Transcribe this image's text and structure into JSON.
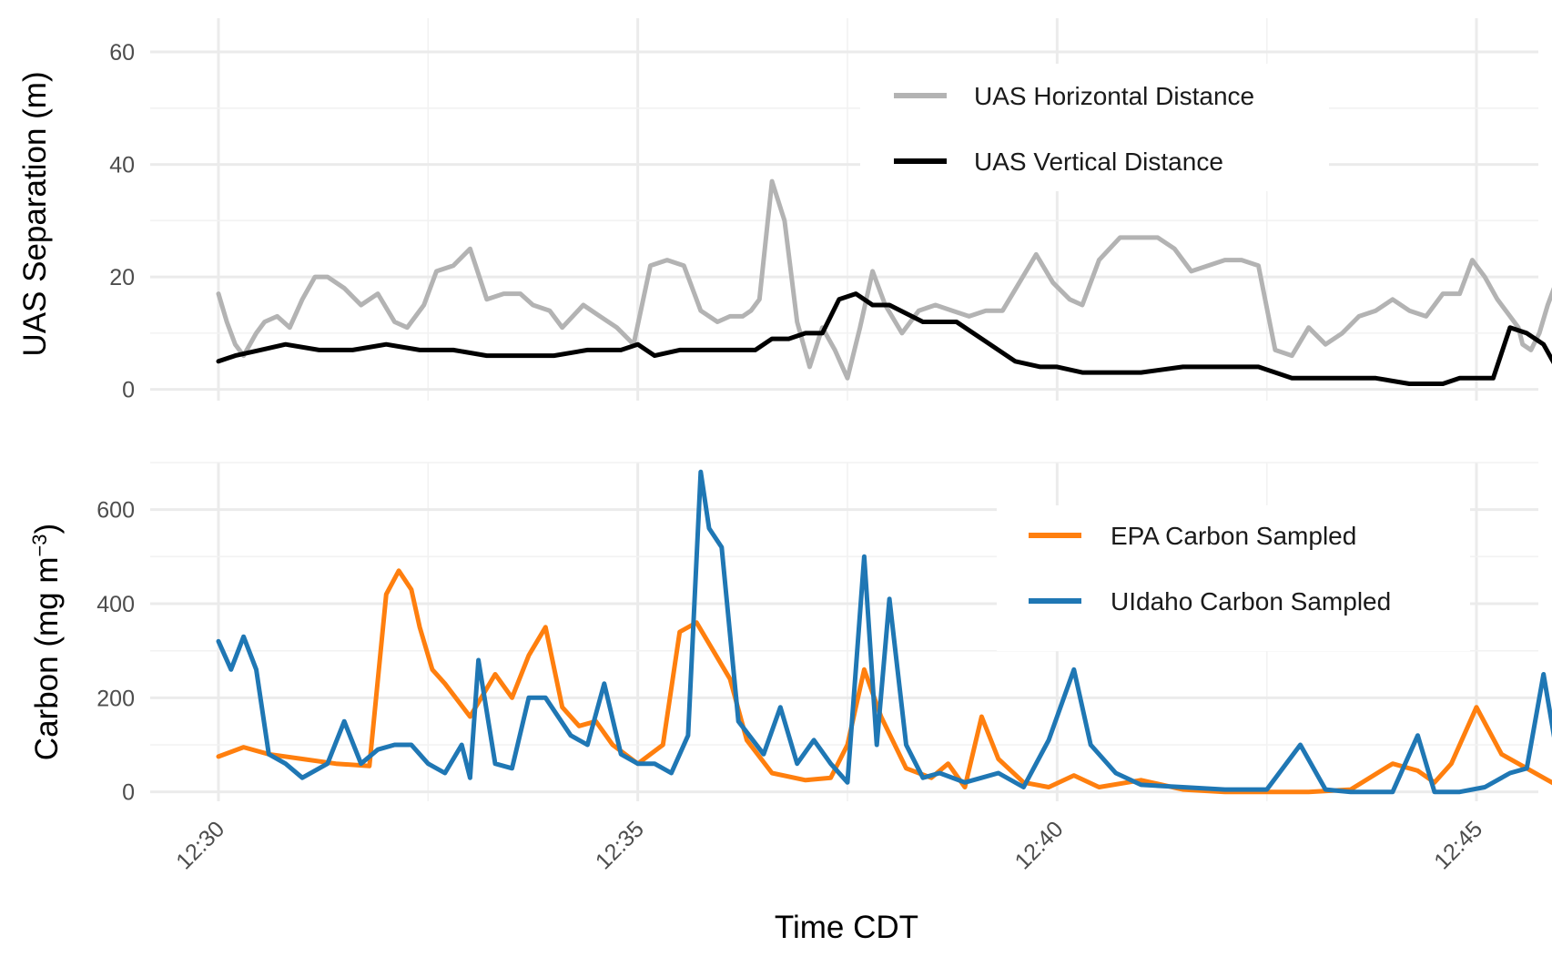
{
  "chart_data": [
    {
      "type": "line",
      "ylabel": "UAS Separation (m)",
      "xlabel": "",
      "x_unit": "minutes after 12:30 CDT",
      "ylim": [
        -2,
        66
      ],
      "yticks": [
        0,
        20,
        40,
        60
      ],
      "grid": true,
      "legend_position": "top-right",
      "series": [
        {
          "name": "UAS Horizontal Distance",
          "color": "#b3b3b3",
          "x": [
            0,
            0.1,
            0.2,
            0.3,
            0.45,
            0.55,
            0.7,
            0.85,
            1.0,
            1.15,
            1.3,
            1.5,
            1.7,
            1.9,
            2.1,
            2.25,
            2.45,
            2.6,
            2.8,
            3.0,
            3.2,
            3.4,
            3.6,
            3.75,
            3.95,
            4.1,
            4.35,
            4.55,
            4.75,
            4.95,
            5.15,
            5.35,
            5.55,
            5.75,
            5.95,
            6.1,
            6.25,
            6.35,
            6.45,
            6.6,
            6.75,
            6.9,
            7.05,
            7.2,
            7.35,
            7.5,
            7.65,
            7.8,
            7.95,
            8.15,
            8.35,
            8.55,
            8.75,
            8.95,
            9.15,
            9.35,
            9.55,
            9.75,
            9.95,
            10.15,
            10.3,
            10.5,
            10.75,
            11.0,
            11.2,
            11.4,
            11.6,
            11.8,
            12.0,
            12.2,
            12.4,
            12.6,
            12.8,
            13.0,
            13.2,
            13.4,
            13.6,
            13.8,
            14.0,
            14.2,
            14.4,
            14.6,
            14.8,
            14.95,
            15.1,
            15.25,
            15.4,
            15.5,
            15.55,
            15.65,
            15.75,
            15.85,
            15.95,
            16.0
          ],
          "values": [
            17,
            12,
            8,
            6,
            10,
            12,
            13,
            11,
            16,
            20,
            20,
            18,
            15,
            17,
            12,
            11,
            15,
            21,
            22,
            25,
            16,
            17,
            17,
            15,
            14,
            11,
            15,
            13,
            11,
            8,
            22,
            23,
            22,
            14,
            12,
            13,
            13,
            14,
            16,
            37,
            30,
            12,
            4,
            11,
            7,
            2,
            11,
            21,
            15,
            10,
            14,
            15,
            14,
            13,
            14,
            14,
            19,
            24,
            19,
            16,
            15,
            23,
            27,
            27,
            27,
            25,
            21,
            22,
            23,
            23,
            22,
            7,
            6,
            11,
            8,
            10,
            13,
            14,
            16,
            14,
            13,
            17,
            17,
            23,
            20,
            16,
            13,
            11,
            8,
            7,
            10,
            15,
            19,
            23
          ],
          "extra_x": [
            15.3,
            15.4,
            15.5,
            15.55,
            15.6,
            15.65,
            15.7,
            15.75,
            15.8
          ],
          "extra_values": [
            13,
            11,
            8,
            8,
            9,
            13,
            12,
            11,
            12
          ]
        },
        {
          "name": "UAS Vertical Distance",
          "color": "#000000",
          "x": [
            0,
            0.2,
            0.5,
            0.8,
            1.2,
            1.6,
            2.0,
            2.4,
            2.8,
            3.2,
            3.6,
            4.0,
            4.4,
            4.8,
            5.0,
            5.2,
            5.5,
            5.9,
            6.2,
            6.4,
            6.6,
            6.8,
            7.0,
            7.2,
            7.4,
            7.6,
            7.8,
            8.0,
            8.4,
            8.8,
            9.2,
            9.5,
            9.8,
            10.0,
            10.3,
            10.6,
            11.0,
            11.5,
            12.0,
            12.4,
            12.8,
            13.0,
            13.4,
            13.8,
            14.2,
            14.6,
            14.8,
            15.2,
            15.4,
            15.6,
            15.7,
            15.8,
            15.95,
            16.0
          ],
          "values": [
            5,
            6,
            7,
            8,
            7,
            7,
            8,
            7,
            7,
            6,
            6,
            6,
            7,
            7,
            8,
            6,
            7,
            7,
            7,
            7,
            9,
            9,
            10,
            10,
            16,
            17,
            15,
            15,
            12,
            12,
            8,
            5,
            4,
            4,
            3,
            3,
            3,
            4,
            4,
            4,
            2,
            2,
            2,
            2,
            1,
            1,
            2,
            2,
            11,
            10,
            9,
            8,
            4,
            5
          ]
        }
      ]
    },
    {
      "type": "line",
      "ylabel": "Carbon (mg m",
      "ylabel_exponent": "−3",
      "ylabel_close": ")",
      "xlabel": "Time CDT",
      "x_unit": "minutes after 12:30 CDT",
      "ylim": [
        -20,
        700
      ],
      "yticks": [
        0,
        200,
        400,
        600
      ],
      "xticks": [
        0,
        5,
        10,
        15
      ],
      "xticklabels": [
        "12:30",
        "12:35",
        "12:40",
        "12:45"
      ],
      "grid": true,
      "legend_position": "top-right",
      "series": [
        {
          "name": "EPA Carbon Sampled",
          "color": "#ff7f0e",
          "x": [
            0,
            0.3,
            0.6,
            1.0,
            1.4,
            1.8,
            2.0,
            2.15,
            2.3,
            2.4,
            2.55,
            2.7,
            3.0,
            3.3,
            3.5,
            3.7,
            3.9,
            4.1,
            4.3,
            4.5,
            4.7,
            5.0,
            5.3,
            5.5,
            5.7,
            5.9,
            6.1,
            6.3,
            6.6,
            7.0,
            7.3,
            7.5,
            7.7,
            7.9,
            8.2,
            8.5,
            8.7,
            8.9,
            9.1,
            9.3,
            9.6,
            9.9,
            10.2,
            10.5,
            11.0,
            11.5,
            12.0,
            12.5,
            13.0,
            13.5,
            14.0,
            14.3,
            14.5,
            14.7,
            15.0,
            15.3,
            15.5,
            15.8,
            16.0
          ],
          "values": [
            75,
            95,
            80,
            70,
            60,
            55,
            420,
            470,
            430,
            350,
            260,
            230,
            160,
            250,
            200,
            290,
            350,
            180,
            140,
            150,
            100,
            60,
            100,
            340,
            360,
            300,
            240,
            110,
            40,
            25,
            30,
            100,
            260,
            160,
            50,
            30,
            60,
            10,
            160,
            70,
            20,
            10,
            35,
            10,
            25,
            5,
            0,
            0,
            0,
            5,
            60,
            45,
            20,
            60,
            180,
            80,
            60,
            30,
            10
          ]
        },
        {
          "name": "UIdaho Carbon Sampled",
          "color": "#1f77b4",
          "x": [
            0,
            0.15,
            0.3,
            0.45,
            0.6,
            0.8,
            1.0,
            1.3,
            1.5,
            1.7,
            1.9,
            2.1,
            2.3,
            2.5,
            2.7,
            2.9,
            3.0,
            3.1,
            3.3,
            3.5,
            3.7,
            3.9,
            4.2,
            4.4,
            4.6,
            4.8,
            5.0,
            5.2,
            5.4,
            5.6,
            5.75,
            5.85,
            6.0,
            6.2,
            6.5,
            6.7,
            6.9,
            7.1,
            7.3,
            7.5,
            7.7,
            7.85,
            8.0,
            8.2,
            8.4,
            8.6,
            8.9,
            9.1,
            9.3,
            9.6,
            9.9,
            10.2,
            10.4,
            10.7,
            11.0,
            11.5,
            12.0,
            12.5,
            12.9,
            13.2,
            13.5,
            14.0,
            14.3,
            14.5,
            14.8,
            15.1,
            15.4,
            15.6,
            15.8,
            16.0
          ],
          "values": [
            320,
            260,
            330,
            260,
            80,
            60,
            30,
            60,
            150,
            60,
            90,
            100,
            100,
            60,
            40,
            100,
            30,
            280,
            60,
            50,
            200,
            200,
            120,
            100,
            230,
            80,
            60,
            60,
            40,
            120,
            680,
            560,
            520,
            150,
            80,
            180,
            60,
            110,
            60,
            20,
            500,
            100,
            410,
            100,
            30,
            40,
            20,
            30,
            40,
            10,
            110,
            260,
            100,
            40,
            15,
            10,
            5,
            5,
            100,
            5,
            0,
            0,
            120,
            0,
            0,
            10,
            40,
            50,
            250,
            40
          ]
        }
      ]
    }
  ],
  "legend_top": {
    "items": [
      {
        "label": "UAS Horizontal Distance",
        "color": "#b3b3b3"
      },
      {
        "label": "UAS Vertical Distance",
        "color": "#000000"
      }
    ]
  },
  "legend_bottom": {
    "items": [
      {
        "label": "EPA Carbon Sampled",
        "color": "#ff7f0e"
      },
      {
        "label": "UIdaho Carbon Sampled",
        "color": "#1f77b4"
      }
    ]
  }
}
